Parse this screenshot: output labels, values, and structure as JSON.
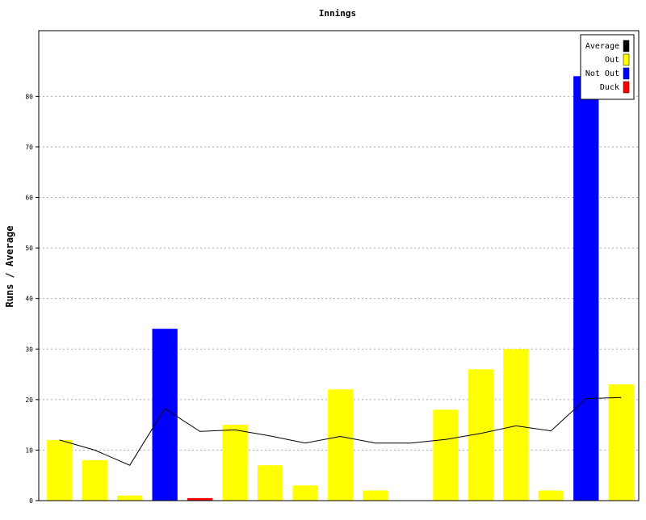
{
  "chart_data": {
    "type": "bar",
    "title": "Innings",
    "xlabel": "",
    "ylabel": "Runs / Average",
    "ylim": [
      0,
      93
    ],
    "yticks": [
      0,
      10,
      20,
      30,
      40,
      50,
      60,
      70,
      80
    ],
    "grid": true,
    "legend_position": "top-right",
    "colors": {
      "Average": "#000000",
      "Out": "#ffff00",
      "Not Out": "#0000ff",
      "Duck": "#ff0000"
    },
    "legend": [
      "Average",
      "Out",
      "Not Out",
      "Duck"
    ],
    "innings": [
      {
        "runs": 12,
        "status": "Out"
      },
      {
        "runs": 8,
        "status": "Out"
      },
      {
        "runs": 1,
        "status": "Out"
      },
      {
        "runs": 34,
        "status": "Not Out"
      },
      {
        "runs": 0.5,
        "status": "Duck"
      },
      {
        "runs": 15,
        "status": "Out"
      },
      {
        "runs": 7,
        "status": "Out"
      },
      {
        "runs": 3,
        "status": "Out"
      },
      {
        "runs": 22,
        "status": "Out"
      },
      {
        "runs": 2,
        "status": "Out"
      },
      {
        "runs": 0,
        "status": "Out"
      },
      {
        "runs": 18,
        "status": "Out"
      },
      {
        "runs": 26,
        "status": "Out"
      },
      {
        "runs": 30,
        "status": "Out"
      },
      {
        "runs": 2,
        "status": "Out"
      },
      {
        "runs": 84,
        "status": "Not Out"
      },
      {
        "runs": 23,
        "status": "Out"
      }
    ],
    "average": [
      12,
      10,
      7,
      18.2,
      13.7,
      14,
      12.8,
      11.4,
      12.7,
      11.4,
      11.4,
      12.1,
      13.3,
      14.8,
      13.8,
      20.2,
      20.4
    ]
  }
}
